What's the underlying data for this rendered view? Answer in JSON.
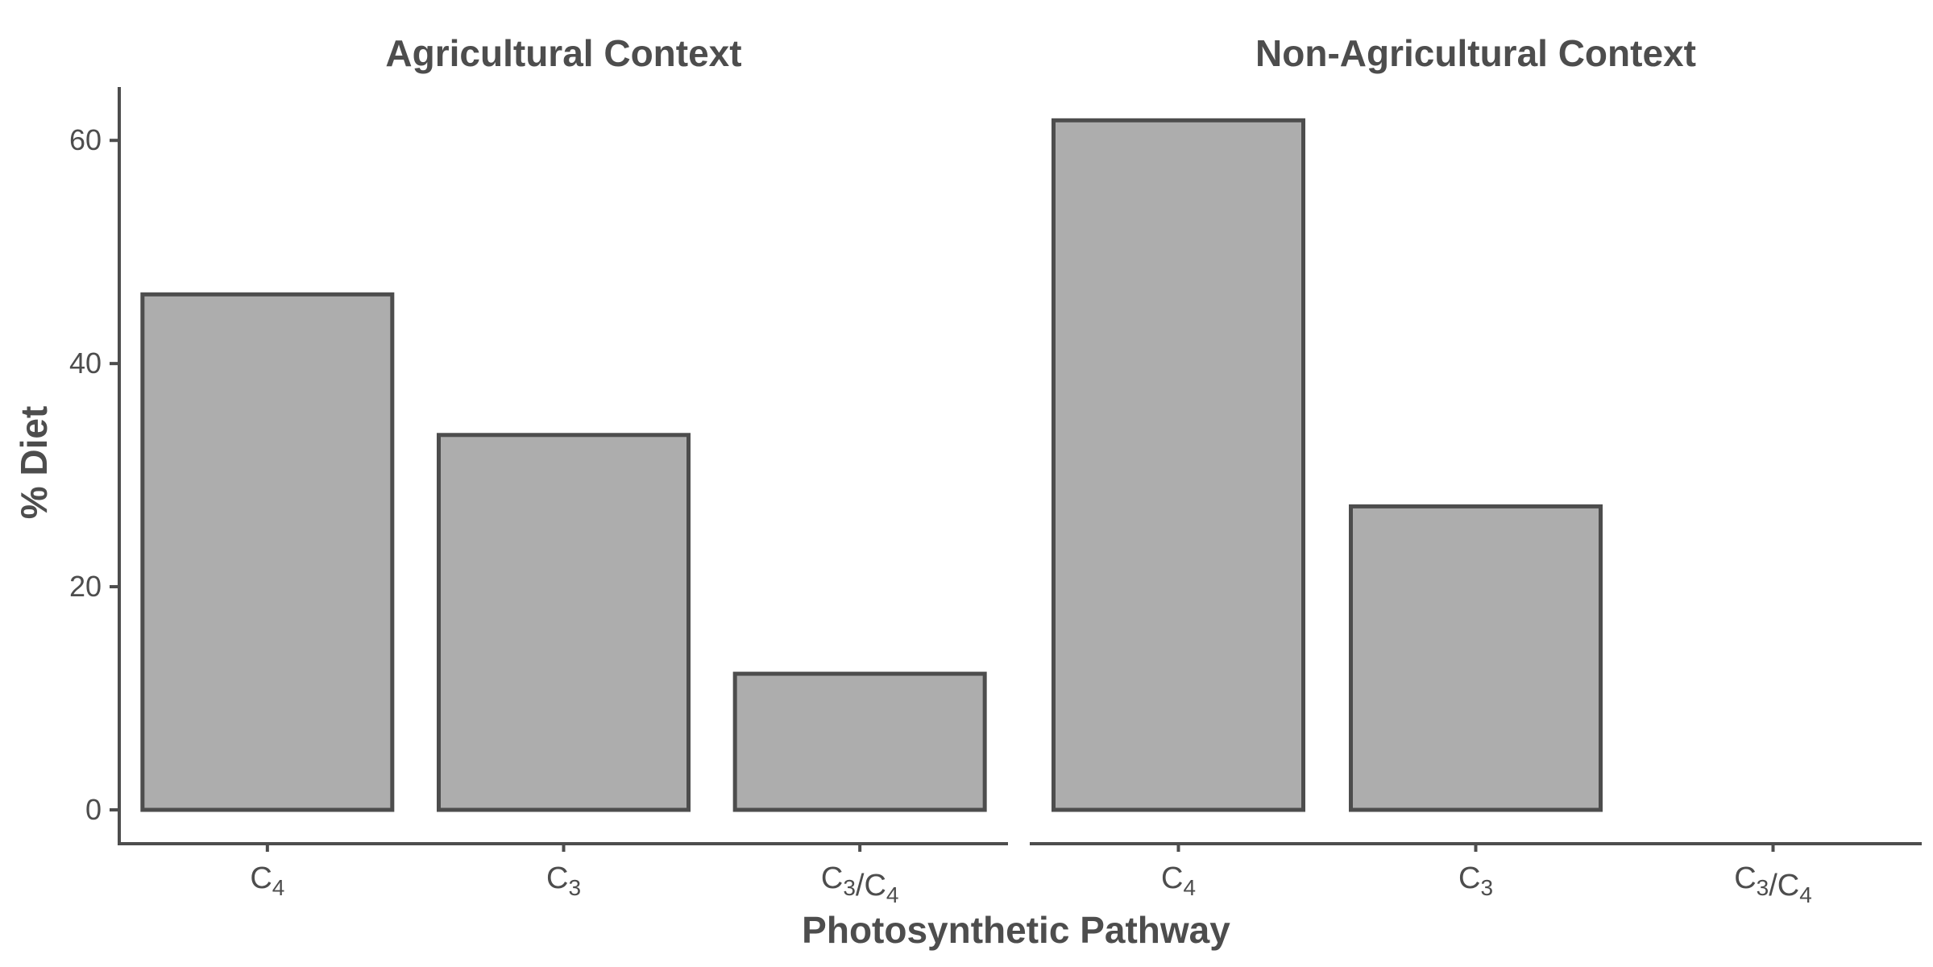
{
  "chart_data": {
    "type": "bar",
    "xlabel": "Photosynthetic Pathway",
    "ylabel": "% Diet",
    "ylim": [
      0,
      65
    ],
    "yticks": [
      0,
      20,
      40,
      60
    ],
    "grid": false,
    "legend": "none",
    "categories": [
      {
        "id": "c4",
        "base": "C",
        "sub": "4"
      },
      {
        "id": "c3",
        "base": "C",
        "sub": "3"
      },
      {
        "id": "c3c4",
        "parts": [
          {
            "base": "C",
            "sub": "3"
          },
          {
            "base": "/C",
            "sub": "4"
          }
        ]
      }
    ],
    "facets": [
      {
        "title": "Agricultural Context",
        "values": [
          46.2,
          33.6,
          12.2
        ]
      },
      {
        "title": "Non-Agricultural Context",
        "values": [
          61.8,
          27.2,
          0
        ]
      }
    ],
    "colors": {
      "bar_fill": "#adadad",
      "bar_stroke": "#4d4d4d",
      "axis": "#4d4d4d"
    }
  }
}
